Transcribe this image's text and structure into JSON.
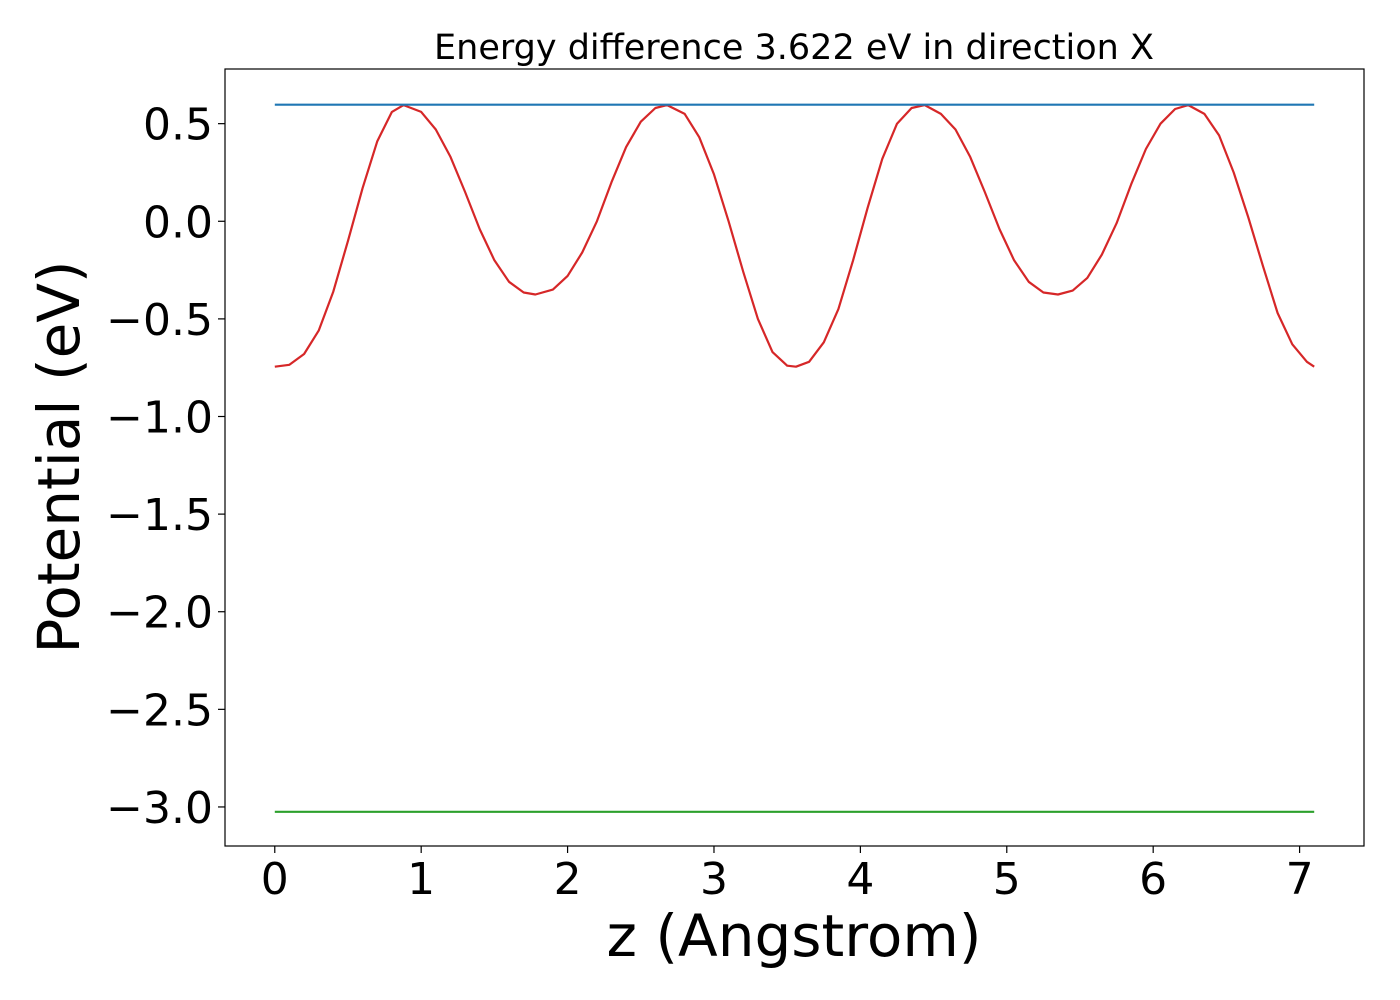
{
  "chart_data": {
    "type": "line",
    "title": "Energy difference 3.622 eV in direction X",
    "xlabel": "z (Angstrom)",
    "ylabel": "Potential (eV)",
    "xlim": [
      -0.34,
      7.44
    ],
    "ylim": [
      -3.2,
      0.78
    ],
    "xticks": [
      0,
      1,
      2,
      3,
      4,
      5,
      6,
      7
    ],
    "xtick_labels": [
      "0",
      "1",
      "2",
      "3",
      "4",
      "5",
      "6",
      "7"
    ],
    "yticks": [
      0.5,
      0.0,
      -0.5,
      -1.0,
      -1.5,
      -2.0,
      -2.5,
      -3.0
    ],
    "ytick_labels": [
      "0.5",
      "0.0",
      "−0.5",
      "−1.0",
      "−1.5",
      "−2.0",
      "−2.5",
      "−3.0"
    ],
    "grid": false,
    "legend": "none",
    "series": [
      {
        "color": "#d62728",
        "points": [
          [
            0.0,
            -0.745
          ],
          [
            0.1,
            -0.735
          ],
          [
            0.2,
            -0.68
          ],
          [
            0.3,
            -0.56
          ],
          [
            0.4,
            -0.36
          ],
          [
            0.5,
            -0.1
          ],
          [
            0.6,
            0.17
          ],
          [
            0.7,
            0.41
          ],
          [
            0.8,
            0.56
          ],
          [
            0.88,
            0.595
          ],
          [
            1.0,
            0.56
          ],
          [
            1.1,
            0.47
          ],
          [
            1.2,
            0.33
          ],
          [
            1.3,
            0.15
          ],
          [
            1.4,
            -0.04
          ],
          [
            1.5,
            -0.2
          ],
          [
            1.6,
            -0.31
          ],
          [
            1.7,
            -0.365
          ],
          [
            1.78,
            -0.375
          ],
          [
            1.9,
            -0.35
          ],
          [
            2.0,
            -0.28
          ],
          [
            2.1,
            -0.16
          ],
          [
            2.2,
            0.0
          ],
          [
            2.3,
            0.2
          ],
          [
            2.4,
            0.38
          ],
          [
            2.5,
            0.51
          ],
          [
            2.6,
            0.58
          ],
          [
            2.68,
            0.595
          ],
          [
            2.8,
            0.55
          ],
          [
            2.9,
            0.43
          ],
          [
            3.0,
            0.24
          ],
          [
            3.1,
            0.0
          ],
          [
            3.2,
            -0.26
          ],
          [
            3.3,
            -0.5
          ],
          [
            3.4,
            -0.67
          ],
          [
            3.5,
            -0.74
          ],
          [
            3.56,
            -0.745
          ],
          [
            3.65,
            -0.72
          ],
          [
            3.75,
            -0.62
          ],
          [
            3.85,
            -0.45
          ],
          [
            3.95,
            -0.2
          ],
          [
            4.05,
            0.07
          ],
          [
            4.15,
            0.32
          ],
          [
            4.25,
            0.5
          ],
          [
            4.35,
            0.58
          ],
          [
            4.44,
            0.595
          ],
          [
            4.55,
            0.55
          ],
          [
            4.65,
            0.47
          ],
          [
            4.75,
            0.33
          ],
          [
            4.85,
            0.15
          ],
          [
            4.95,
            -0.04
          ],
          [
            5.05,
            -0.2
          ],
          [
            5.15,
            -0.31
          ],
          [
            5.25,
            -0.365
          ],
          [
            5.35,
            -0.375
          ],
          [
            5.45,
            -0.355
          ],
          [
            5.55,
            -0.29
          ],
          [
            5.65,
            -0.17
          ],
          [
            5.75,
            -0.01
          ],
          [
            5.85,
            0.19
          ],
          [
            5.95,
            0.37
          ],
          [
            6.05,
            0.5
          ],
          [
            6.15,
            0.575
          ],
          [
            6.24,
            0.595
          ],
          [
            6.35,
            0.55
          ],
          [
            6.45,
            0.44
          ],
          [
            6.55,
            0.25
          ],
          [
            6.65,
            0.02
          ],
          [
            6.75,
            -0.23
          ],
          [
            6.85,
            -0.47
          ],
          [
            6.95,
            -0.63
          ],
          [
            7.05,
            -0.72
          ],
          [
            7.1,
            -0.745
          ]
        ]
      },
      {
        "color": "#1f77b4",
        "points": [
          [
            0.0,
            0.597
          ],
          [
            7.1,
            0.597
          ]
        ]
      },
      {
        "color": "#2ca02c",
        "points": [
          [
            0.0,
            -3.025
          ],
          [
            7.1,
            -3.025
          ]
        ]
      }
    ]
  }
}
